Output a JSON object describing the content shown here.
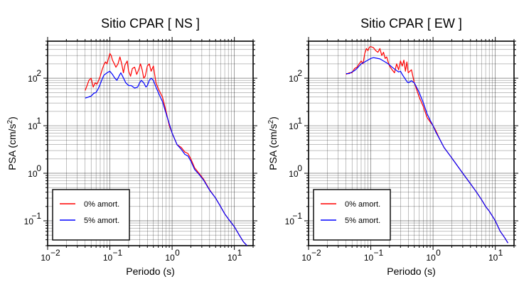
{
  "chart_data": [
    {
      "type": "line",
      "title": "Sitio CPAR [ NS ]",
      "xlabel": "Periodo (s)",
      "ylabel_main": "PSA (cm/s",
      "ylabel_sup": "2",
      "ylabel_close": ")",
      "xscale": "log",
      "yscale": "log",
      "xlim": [
        0.01,
        20
      ],
      "ylim": [
        0.03,
        600
      ],
      "grid": true,
      "legend_position": "bottom-left",
      "x_ticks": [
        {
          "value": 0.01,
          "base": "10",
          "exp": "−2"
        },
        {
          "value": 0.1,
          "base": "10",
          "exp": "−1"
        },
        {
          "value": 1,
          "base": "10",
          "exp": "0"
        },
        {
          "value": 10,
          "base": "10",
          "exp": "1"
        }
      ],
      "y_ticks": [
        {
          "value": 0.1,
          "base": "10",
          "exp": "−1"
        },
        {
          "value": 1,
          "base": "10",
          "exp": "0"
        },
        {
          "value": 10,
          "base": "10",
          "exp": "1"
        },
        {
          "value": 100,
          "base": "10",
          "exp": "2"
        }
      ],
      "series": [
        {
          "name": "0% amort.",
          "color": "#ff0000",
          "points": [
            [
              0.04,
              55
            ],
            [
              0.043,
              70
            ],
            [
              0.046,
              90
            ],
            [
              0.05,
              100
            ],
            [
              0.054,
              65
            ],
            [
              0.058,
              80
            ],
            [
              0.062,
              75
            ],
            [
              0.066,
              90
            ],
            [
              0.07,
              110
            ],
            [
              0.075,
              150
            ],
            [
              0.08,
              190
            ],
            [
              0.085,
              220
            ],
            [
              0.09,
              200
            ],
            [
              0.095,
              260
            ],
            [
              0.1,
              330
            ],
            [
              0.105,
              300
            ],
            [
              0.11,
              240
            ],
            [
              0.118,
              200
            ],
            [
              0.125,
              170
            ],
            [
              0.135,
              200
            ],
            [
              0.145,
              280
            ],
            [
              0.155,
              200
            ],
            [
              0.165,
              130
            ],
            [
              0.175,
              190
            ],
            [
              0.19,
              230
            ],
            [
              0.2,
              140
            ],
            [
              0.215,
              110
            ],
            [
              0.23,
              160
            ],
            [
              0.25,
              170
            ],
            [
              0.27,
              120
            ],
            [
              0.29,
              150
            ],
            [
              0.31,
              200
            ],
            [
              0.33,
              150
            ],
            [
              0.35,
              100
            ],
            [
              0.37,
              110
            ],
            [
              0.4,
              180
            ],
            [
              0.43,
              200
            ],
            [
              0.46,
              140
            ],
            [
              0.5,
              180
            ],
            [
              0.55,
              80
            ],
            [
              0.6,
              60
            ],
            [
              0.7,
              40
            ],
            [
              0.8,
              20
            ],
            [
              0.9,
              10
            ],
            [
              1.0,
              7
            ],
            [
              1.2,
              4
            ],
            [
              1.4,
              3.5
            ],
            [
              1.6,
              2.8
            ],
            [
              1.8,
              2.6
            ],
            [
              2.0,
              2.0
            ],
            [
              2.3,
              1.3
            ],
            [
              2.7,
              1.0
            ],
            [
              3.2,
              0.75
            ],
            [
              4,
              0.45
            ],
            [
              5,
              0.3
            ],
            [
              6,
              0.2
            ],
            [
              7,
              0.14
            ],
            [
              8,
              0.11
            ],
            [
              10,
              0.075
            ],
            [
              12,
              0.05
            ],
            [
              14,
              0.036
            ],
            [
              16,
              0.03
            ]
          ]
        },
        {
          "name": "5% amort.",
          "color": "#0000ff",
          "points": [
            [
              0.04,
              38
            ],
            [
              0.045,
              40
            ],
            [
              0.05,
              42
            ],
            [
              0.055,
              48
            ],
            [
              0.06,
              50
            ],
            [
              0.065,
              60
            ],
            [
              0.07,
              75
            ],
            [
              0.075,
              95
            ],
            [
              0.08,
              115
            ],
            [
              0.09,
              130
            ],
            [
              0.1,
              140
            ],
            [
              0.11,
              120
            ],
            [
              0.12,
              100
            ],
            [
              0.13,
              90
            ],
            [
              0.14,
              110
            ],
            [
              0.15,
              130
            ],
            [
              0.16,
              110
            ],
            [
              0.18,
              80
            ],
            [
              0.2,
              70
            ],
            [
              0.22,
              70
            ],
            [
              0.25,
              62
            ],
            [
              0.28,
              65
            ],
            [
              0.3,
              80
            ],
            [
              0.32,
              90
            ],
            [
              0.35,
              80
            ],
            [
              0.38,
              65
            ],
            [
              0.4,
              70
            ],
            [
              0.43,
              90
            ],
            [
              0.46,
              100
            ],
            [
              0.5,
              90
            ],
            [
              0.55,
              65
            ],
            [
              0.6,
              50
            ],
            [
              0.7,
              32
            ],
            [
              0.8,
              18
            ],
            [
              0.9,
              11
            ],
            [
              1.0,
              7
            ],
            [
              1.2,
              4
            ],
            [
              1.4,
              3.2
            ],
            [
              1.6,
              2.5
            ],
            [
              1.8,
              2.3
            ],
            [
              2.0,
              1.8
            ],
            [
              2.3,
              1.2
            ],
            [
              2.7,
              0.95
            ],
            [
              3.2,
              0.72
            ],
            [
              4,
              0.44
            ],
            [
              5,
              0.3
            ],
            [
              6,
              0.2
            ],
            [
              7,
              0.14
            ],
            [
              8,
              0.11
            ],
            [
              10,
              0.075
            ],
            [
              12,
              0.05
            ],
            [
              14,
              0.036
            ],
            [
              16,
              0.03
            ]
          ]
        }
      ]
    },
    {
      "type": "line",
      "title": "Sitio CPAR [ EW ]",
      "xlabel": "Periodo (s)",
      "ylabel_main": "PSA (cm/s",
      "ylabel_sup": "2",
      "ylabel_close": ")",
      "xscale": "log",
      "yscale": "log",
      "xlim": [
        0.01,
        20
      ],
      "ylim": [
        0.03,
        600
      ],
      "grid": true,
      "legend_position": "bottom-left",
      "x_ticks": [
        {
          "value": 0.01,
          "base": "10",
          "exp": "−2"
        },
        {
          "value": 0.1,
          "base": "10",
          "exp": "−1"
        },
        {
          "value": 1,
          "base": "10",
          "exp": "0"
        },
        {
          "value": 10,
          "base": "10",
          "exp": "1"
        }
      ],
      "y_ticks": [
        {
          "value": 0.1,
          "base": "10",
          "exp": "−1"
        },
        {
          "value": 1,
          "base": "10",
          "exp": "0"
        },
        {
          "value": 10,
          "base": "10",
          "exp": "1"
        },
        {
          "value": 100,
          "base": "10",
          "exp": "2"
        }
      ],
      "series": [
        {
          "name": "0% amort.",
          "color": "#ff0000",
          "points": [
            [
              0.04,
              120
            ],
            [
              0.045,
              130
            ],
            [
              0.05,
              130
            ],
            [
              0.055,
              160
            ],
            [
              0.06,
              170
            ],
            [
              0.065,
              200
            ],
            [
              0.07,
              230
            ],
            [
              0.075,
              200
            ],
            [
              0.08,
              330
            ],
            [
              0.085,
              420
            ],
            [
              0.09,
              380
            ],
            [
              0.095,
              450
            ],
            [
              0.1,
              460
            ],
            [
              0.11,
              440
            ],
            [
              0.12,
              380
            ],
            [
              0.13,
              350
            ],
            [
              0.14,
              420
            ],
            [
              0.15,
              300
            ],
            [
              0.16,
              350
            ],
            [
              0.17,
              260
            ],
            [
              0.18,
              280
            ],
            [
              0.19,
              220
            ],
            [
              0.2,
              180
            ],
            [
              0.22,
              150
            ],
            [
              0.24,
              130
            ],
            [
              0.26,
              200
            ],
            [
              0.28,
              150
            ],
            [
              0.3,
              230
            ],
            [
              0.32,
              180
            ],
            [
              0.34,
              240
            ],
            [
              0.36,
              140
            ],
            [
              0.38,
              220
            ],
            [
              0.4,
              130
            ],
            [
              0.45,
              150
            ],
            [
              0.5,
              80
            ],
            [
              0.6,
              40
            ],
            [
              0.7,
              25
            ],
            [
              0.8,
              15
            ],
            [
              0.9,
              12
            ],
            [
              1.0,
              10
            ],
            [
              1.1,
              8
            ],
            [
              1.3,
              5
            ],
            [
              1.5,
              3.5
            ],
            [
              2,
              2.1
            ],
            [
              3,
              1.0
            ],
            [
              4,
              0.6
            ],
            [
              5,
              0.4
            ],
            [
              6,
              0.28
            ],
            [
              7,
              0.2
            ],
            [
              8,
              0.16
            ],
            [
              10,
              0.1
            ],
            [
              12,
              0.06
            ],
            [
              14,
              0.045
            ],
            [
              16,
              0.034
            ]
          ]
        },
        {
          "name": "5% amort.",
          "color": "#0000ff",
          "points": [
            [
              0.04,
              125
            ],
            [
              0.045,
              125
            ],
            [
              0.05,
              135
            ],
            [
              0.055,
              145
            ],
            [
              0.06,
              160
            ],
            [
              0.065,
              180
            ],
            [
              0.07,
              200
            ],
            [
              0.08,
              220
            ],
            [
              0.09,
              240
            ],
            [
              0.1,
              260
            ],
            [
              0.11,
              270
            ],
            [
              0.12,
              265
            ],
            [
              0.14,
              255
            ],
            [
              0.16,
              230
            ],
            [
              0.18,
              210
            ],
            [
              0.2,
              190
            ],
            [
              0.22,
              170
            ],
            [
              0.25,
              150
            ],
            [
              0.28,
              135
            ],
            [
              0.3,
              140
            ],
            [
              0.32,
              120
            ],
            [
              0.35,
              100
            ],
            [
              0.38,
              85
            ],
            [
              0.4,
              80
            ],
            [
              0.45,
              88
            ],
            [
              0.5,
              80
            ],
            [
              0.6,
              50
            ],
            [
              0.7,
              30
            ],
            [
              0.8,
              18
            ],
            [
              0.9,
              13
            ],
            [
              1.0,
              10
            ],
            [
              1.1,
              7.5
            ],
            [
              1.3,
              5
            ],
            [
              1.5,
              3.5
            ],
            [
              2,
              2.1
            ],
            [
              3,
              1.0
            ],
            [
              4,
              0.6
            ],
            [
              5,
              0.4
            ],
            [
              6,
              0.28
            ],
            [
              7,
              0.2
            ],
            [
              8,
              0.16
            ],
            [
              10,
              0.1
            ],
            [
              12,
              0.06
            ],
            [
              14,
              0.045
            ],
            [
              16,
              0.034
            ]
          ]
        }
      ]
    }
  ]
}
